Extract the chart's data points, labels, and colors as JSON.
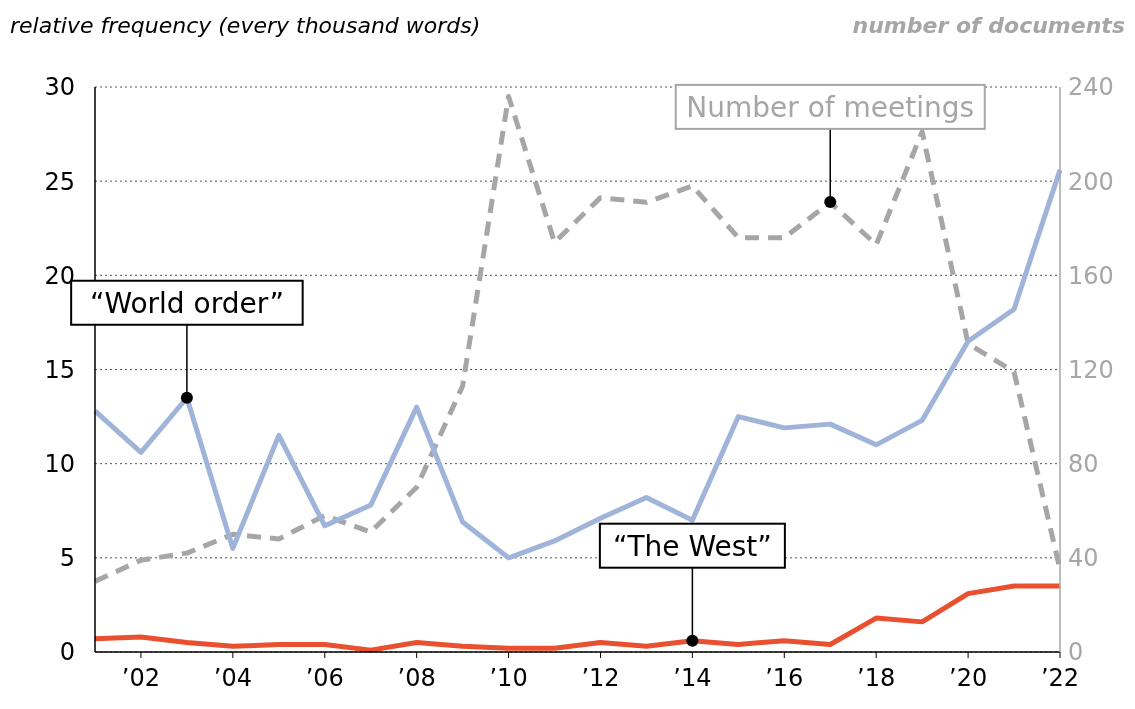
{
  "chart_data": {
    "type": "line",
    "ylabel": "relative frequency (every thousand words)",
    "y2label": "number of documents",
    "x": [
      2001,
      2002,
      2003,
      2004,
      2005,
      2006,
      2007,
      2008,
      2009,
      2010,
      2011,
      2012,
      2013,
      2014,
      2015,
      2016,
      2017,
      2018,
      2019,
      2020,
      2021,
      2022
    ],
    "xlim": [
      2001,
      2022
    ],
    "xticks": [
      {
        "value": 2002,
        "label": "’02"
      },
      {
        "value": 2004,
        "label": "’04"
      },
      {
        "value": 2006,
        "label": "’06"
      },
      {
        "value": 2008,
        "label": "’08"
      },
      {
        "value": 2010,
        "label": "’10"
      },
      {
        "value": 2012,
        "label": "’12"
      },
      {
        "value": 2014,
        "label": "’14"
      },
      {
        "value": 2016,
        "label": "’16"
      },
      {
        "value": 2018,
        "label": "’18"
      },
      {
        "value": 2020,
        "label": "’20"
      },
      {
        "value": 2022,
        "label": "’22"
      }
    ],
    "ylim": [
      0,
      30
    ],
    "yticks": [
      0,
      5,
      10,
      15,
      20,
      25,
      30
    ],
    "y2lim": [
      0,
      240
    ],
    "y2ticks": [
      0,
      40,
      80,
      120,
      160,
      200,
      240
    ],
    "grid": "y",
    "series": [
      {
        "color": "#a6a6a6",
        "axis": "y2",
        "line_style": "dashed",
        "values": [
          30,
          39,
          42,
          50,
          48,
          58,
          51,
          70,
          113,
          236,
          174,
          193,
          191,
          198,
          176,
          176,
          191,
          173,
          221,
          131,
          119,
          35
        ]
      },
      {
        "color": "#9fb4d8",
        "line_style": "solid",
        "values": [
          12.8,
          10.6,
          13.5,
          5.5,
          11.5,
          6.7,
          7.8,
          13.0,
          6.9,
          5.0,
          5.9,
          7.1,
          8.2,
          7.0,
          12.5,
          11.9,
          12.1,
          11.0,
          12.3,
          16.5,
          18.2,
          25.6
        ]
      },
      {
        "color": "#e8502f",
        "line_style": "solid",
        "values": [
          0.7,
          0.8,
          0.5,
          0.3,
          0.4,
          0.4,
          0.1,
          0.5,
          0.3,
          0.2,
          0.2,
          0.5,
          0.3,
          0.6,
          0.4,
          0.6,
          0.4,
          1.8,
          1.6,
          3.1,
          3.5,
          3.5
        ]
      }
    ],
    "annotations": [
      {
        "text": "“World order”",
        "x": 2003,
        "y": 13.5
      },
      {
        "text": "“The West”",
        "x": 2014,
        "y": 0.6
      },
      {
        "text": "Number of meetings",
        "x": 2017,
        "y": 23.9
      }
    ]
  }
}
